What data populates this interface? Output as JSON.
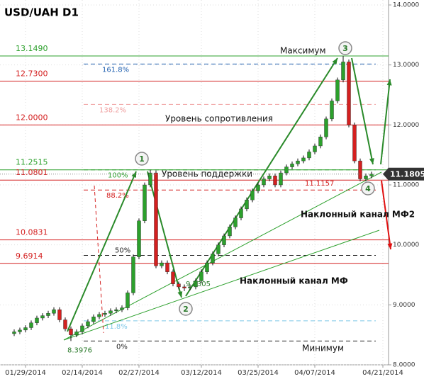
{
  "chart_data": {
    "type": "candlestick",
    "title": "USD/UAH D1",
    "series": {
      "open": [
        8.52,
        8.55,
        8.58,
        8.62,
        8.7,
        8.78,
        8.82,
        8.86,
        8.92,
        8.75,
        8.6,
        8.5,
        8.55,
        8.65,
        8.72,
        8.8,
        8.84,
        8.86,
        8.9,
        8.92,
        8.95,
        9.2,
        9.8,
        10.4,
        11.0,
        11.2,
        9.65,
        9.7,
        9.55,
        9.35,
        9.3,
        9.28,
        9.3,
        9.4,
        9.55,
        9.7,
        9.85,
        10.0,
        10.15,
        10.3,
        10.45,
        10.6,
        10.75,
        10.9,
        11.0,
        11.1,
        11.15,
        11.0,
        11.2,
        11.3,
        11.35,
        11.4,
        11.45,
        11.55,
        11.65,
        11.8,
        12.1,
        12.4,
        12.75,
        13.05,
        12.0,
        11.4,
        11.1,
        11.15
      ],
      "high": [
        8.59,
        8.62,
        8.66,
        8.74,
        8.82,
        8.86,
        8.9,
        8.96,
        8.96,
        8.79,
        8.64,
        8.59,
        8.69,
        8.76,
        8.84,
        8.88,
        8.9,
        8.94,
        8.96,
        8.99,
        9.24,
        9.84,
        10.44,
        11.04,
        11.2515,
        11.24,
        9.74,
        9.74,
        9.59,
        9.39,
        9.34,
        9.34,
        9.44,
        9.59,
        9.74,
        9.89,
        10.04,
        10.19,
        10.34,
        10.49,
        10.64,
        10.79,
        10.94,
        11.04,
        11.14,
        11.19,
        11.19,
        11.24,
        11.34,
        11.39,
        11.44,
        11.49,
        11.59,
        11.69,
        11.84,
        12.14,
        12.44,
        12.79,
        13.149,
        13.09,
        12.04,
        11.44,
        11.19,
        11.22
      ],
      "low": [
        8.48,
        8.51,
        8.54,
        8.58,
        8.66,
        8.74,
        8.78,
        8.82,
        8.71,
        8.56,
        8.3976,
        8.46,
        8.51,
        8.61,
        8.68,
        8.76,
        8.8,
        8.82,
        8.86,
        8.88,
        8.91,
        9.16,
        9.76,
        10.36,
        10.96,
        9.61,
        9.61,
        9.51,
        9.31,
        9.26,
        9.2305,
        9.24,
        9.26,
        9.36,
        9.51,
        9.66,
        9.81,
        9.96,
        10.11,
        10.26,
        10.41,
        10.56,
        10.71,
        10.86,
        10.96,
        11.06,
        10.96,
        10.96,
        11.16,
        11.26,
        11.31,
        11.36,
        11.41,
        11.51,
        11.61,
        11.76,
        12.06,
        12.36,
        12.71,
        11.96,
        11.36,
        11.06,
        11.06,
        11.11
      ],
      "close": [
        8.55,
        8.58,
        8.62,
        8.7,
        8.78,
        8.82,
        8.86,
        8.92,
        8.75,
        8.6,
        8.5,
        8.55,
        8.65,
        8.72,
        8.8,
        8.84,
        8.86,
        8.9,
        8.92,
        8.95,
        9.2,
        9.8,
        10.4,
        11.0,
        11.2,
        9.65,
        9.7,
        9.55,
        9.35,
        9.3,
        9.28,
        9.3,
        9.4,
        9.55,
        9.7,
        9.85,
        10.0,
        10.15,
        10.3,
        10.45,
        10.6,
        10.75,
        10.9,
        11.0,
        11.1,
        11.15,
        11.0,
        11.2,
        11.3,
        11.35,
        11.4,
        11.45,
        11.55,
        11.65,
        11.8,
        12.1,
        12.4,
        12.75,
        13.05,
        12.0,
        11.4,
        11.1,
        11.15,
        11.18
      ]
    },
    "up_color": "#2ca02c",
    "down_color": "#d42020",
    "xlim": [
      -2.5,
      66
    ],
    "xticks": [
      {
        "value": 2,
        "label": "01/29/2014"
      },
      {
        "value": 12,
        "label": "02/14/2014"
      },
      {
        "value": 22,
        "label": "02/27/2014"
      },
      {
        "value": 33,
        "label": "03/12/2014"
      },
      {
        "value": 43,
        "label": "03/25/2014"
      },
      {
        "value": 53,
        "label": "04/07/2014"
      },
      {
        "value": 65,
        "label": "04/21/2014"
      }
    ],
    "ylim": [
      8,
      14
    ],
    "yticks": [
      {
        "value": 8,
        "label": "8.0000"
      },
      {
        "value": 9,
        "label": "9.0000"
      },
      {
        "value": 10,
        "label": "10.0000"
      },
      {
        "value": 11,
        "label": "11.0000"
      },
      {
        "value": 12,
        "label": "12.0000"
      },
      {
        "value": 13,
        "label": "13.0000"
      },
      {
        "value": 14,
        "label": "14.0000"
      }
    ],
    "grid": true,
    "levels": [
      {
        "value": 13.149,
        "label": "13.1490",
        "color": "#2ca02c"
      },
      {
        "value": 12.73,
        "label": "12.7300",
        "color": "#d42020"
      },
      {
        "value": 12,
        "label": "12.0000",
        "color": "#d42020"
      },
      {
        "value": 11.2515,
        "label": "11.2515",
        "color": "#2ca02c"
      },
      {
        "value": 11.0801,
        "label": "11.0801",
        "color": "#d42020"
      },
      {
        "value": 10.0831,
        "label": "10.0831",
        "color": "#d42020"
      },
      {
        "value": 9.6914,
        "label": "9.6914",
        "color": "#d42020"
      }
    ],
    "fibonacci": [
      {
        "value": 13.015,
        "label": "161.8%",
        "color": "#2060b0"
      },
      {
        "value": 12.342,
        "label": "138.2%",
        "color": "#f0a0a0"
      },
      {
        "value": 11.2515,
        "label": "100%",
        "color": "#2ca02c"
      },
      {
        "value": 10.915,
        "label": "88.2%",
        "color": "#d42020"
      },
      {
        "value": 9.8246,
        "label": "50%",
        "color": "#222222"
      },
      {
        "value": 8.7344,
        "label": "11.8%",
        "color": "#7ec8e8"
      },
      {
        "value": 8.3976,
        "label": "0%",
        "color": "#222222"
      }
    ],
    "price_labels": [
      {
        "value": 8.3976,
        "label": "8.3976",
        "color": "#2a7a2a"
      },
      {
        "value": 9.2305,
        "label": "9.2305",
        "color": "#2a7a2a"
      },
      {
        "value": 11.1157,
        "label": "11.1157",
        "color": "#d42020"
      }
    ],
    "last_price": {
      "value": 11.1805,
      "label": "11.1805"
    },
    "annotations": [
      "Максимум",
      "Уровень сопротивления",
      "Уровень поддержки",
      "Наклонный канал МФ2",
      "Наклонный канал МФ",
      "Минимум"
    ],
    "points": [
      "1",
      "2",
      "3",
      "4"
    ]
  }
}
